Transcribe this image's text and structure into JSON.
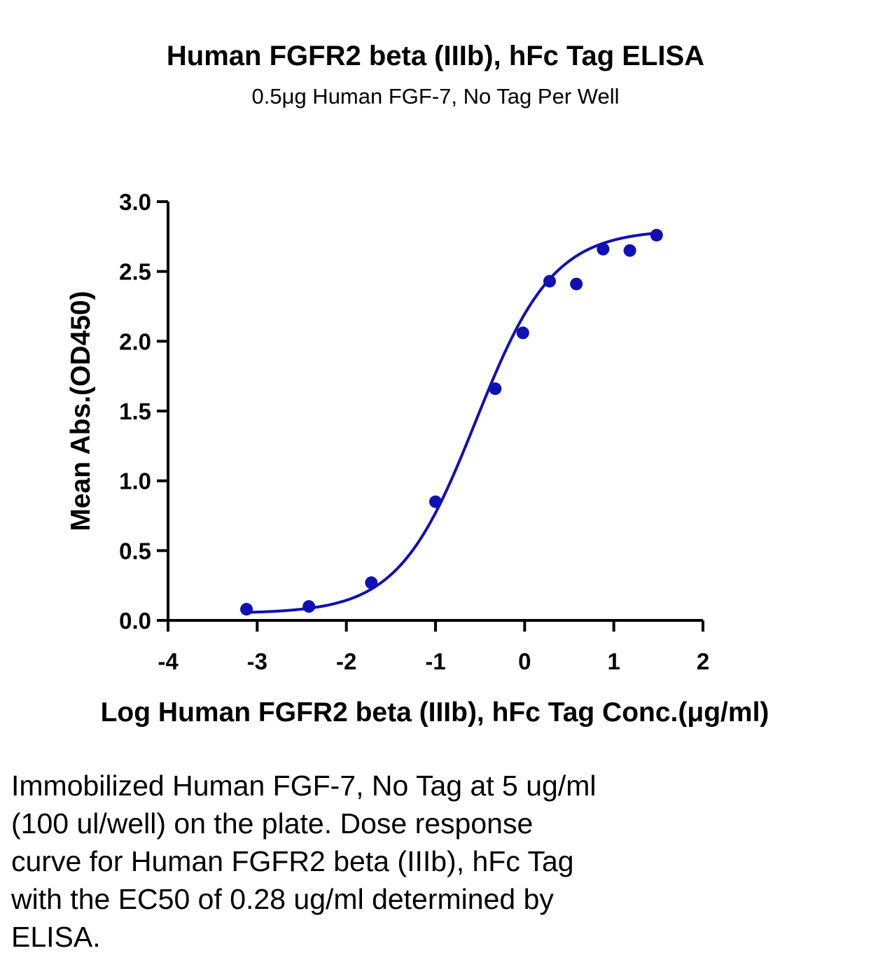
{
  "chart_data": {
    "type": "scatter",
    "title": "Human FGFR2 beta (IIIb), hFc Tag ELISA",
    "subtitle": "0.5μg Human FGF-7, No Tag Per Well",
    "xlabel": "Log Human FGFR2 beta (IIIb), hFc Tag Conc.(μg/ml)",
    "ylabel": "Mean Abs.(OD450)",
    "xlim": [
      -4,
      2
    ],
    "ylim": [
      0,
      3.0
    ],
    "xticks": [
      -4,
      -3,
      -2,
      -1,
      0,
      1,
      2
    ],
    "xtick_labels": [
      "-4",
      "-3",
      "-2",
      "-1",
      "0",
      "1",
      "2"
    ],
    "yticks": [
      0,
      0.5,
      1.0,
      1.5,
      2.0,
      2.5,
      3.0
    ],
    "ytick_labels": [
      "0.0",
      "0.5",
      "1.0",
      "1.5",
      "2.0",
      "2.5",
      "3.0"
    ],
    "grid": false,
    "series": [
      {
        "color": "#1010b4",
        "x": [
          -3.12,
          -2.42,
          -1.72,
          -1.0,
          -0.33,
          -0.02,
          0.28,
          0.58,
          0.88,
          1.18,
          1.48
        ],
        "y": [
          0.08,
          0.1,
          0.27,
          0.85,
          1.66,
          2.06,
          2.43,
          2.41,
          2.66,
          2.65,
          2.76
        ]
      }
    ],
    "fit_curve": {
      "model": "4PL",
      "color": "#1010b4",
      "bottom": 0.05,
      "top": 2.8,
      "log_ec50": -0.55,
      "hill_slope": 1.0,
      "x_range": [
        -3.12,
        1.48
      ]
    }
  },
  "caption": [
    "Immobilized Human FGF-7, No Tag at 5 ug/ml",
    "(100 ul/well) on the plate. Dose response",
    "curve for Human FGFR2 beta (IIIb), hFc Tag",
    "with the EC50 of 0.28 ug/ml determined by",
    "ELISA."
  ]
}
